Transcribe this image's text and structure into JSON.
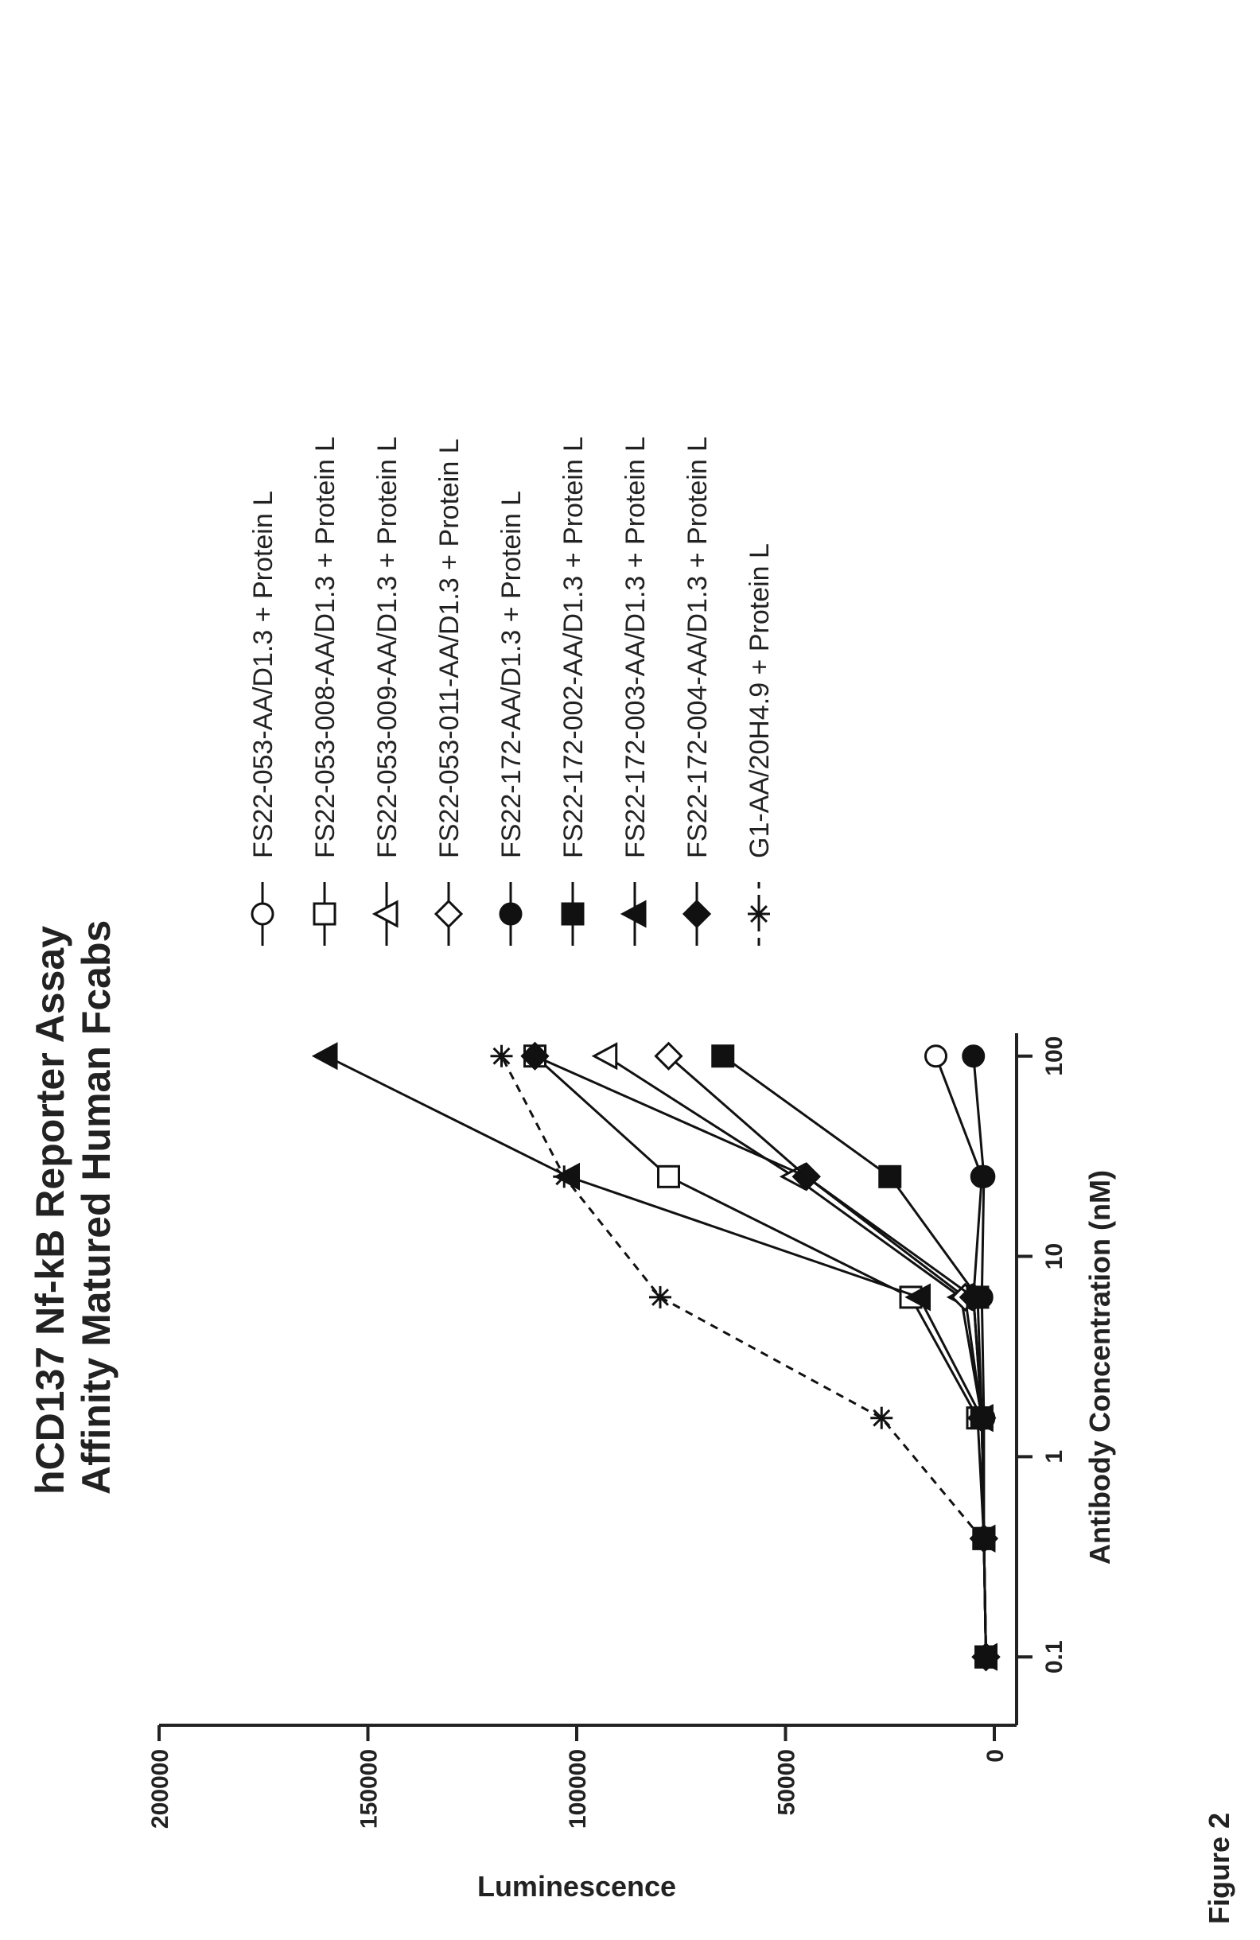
{
  "figure_label": "Figure 2",
  "chart_data": {
    "type": "scatter",
    "title": "hCD137 Nf-kB Reporter Assay",
    "subtitle": "Affinity Matured Human Fcabs",
    "xlabel": "Antibody Concentration (nM)",
    "ylabel": "Luminescence",
    "x_scale": "log",
    "xlim": [
      0.06,
      130
    ],
    "ylim": [
      0,
      200000
    ],
    "x_ticks": [
      0.1,
      1,
      10,
      100
    ],
    "x_tick_labels": [
      "0.1",
      "1",
      "10",
      "100"
    ],
    "y_ticks": [
      0,
      50000,
      100000,
      150000,
      200000
    ],
    "y_tick_labels": [
      "0",
      "50000",
      "100000",
      "150000",
      "200000"
    ],
    "legend_position": "right",
    "series": [
      {
        "name": "FS22-053-AA/D1.3 + Protein  L",
        "marker": "circle-open",
        "line": "solid",
        "x": [
          0.1,
          0.39,
          1.56,
          6.25,
          25,
          100
        ],
        "y": [
          2000,
          2500,
          3000,
          5000,
          3000,
          14000
        ]
      },
      {
        "name": "FS22-053-008-AA/D1.3 + Protein L",
        "marker": "square-open",
        "line": "solid",
        "x": [
          0.1,
          0.39,
          1.56,
          6.25,
          25,
          100
        ],
        "y": [
          2000,
          2500,
          4000,
          20000,
          78000,
          110000
        ]
      },
      {
        "name": "FS22-053-009-AA/D1.3 + Protein L",
        "marker": "triangle-open",
        "line": "solid",
        "x": [
          0.1,
          0.39,
          1.56,
          6.25,
          25,
          100
        ],
        "y": [
          2000,
          2500,
          3000,
          8000,
          48000,
          93000
        ]
      },
      {
        "name": "FS22-053-011-AA/D1.3 + Protein L",
        "marker": "diamond-open",
        "line": "solid",
        "x": [
          0.1,
          0.39,
          1.56,
          6.25,
          25,
          100
        ],
        "y": [
          2000,
          2500,
          3000,
          7000,
          45000,
          78000
        ]
      },
      {
        "name": "FS22-172-AA/D1.3 + Protein  L",
        "marker": "circle-filled",
        "line": "solid",
        "x": [
          0.1,
          0.39,
          1.56,
          6.25,
          25,
          100
        ],
        "y": [
          2000,
          2500,
          2500,
          3000,
          2500,
          5000
        ]
      },
      {
        "name": "FS22-172-002-AA/D1.3 + Protein L",
        "marker": "square-filled",
        "line": "solid",
        "x": [
          0.1,
          0.39,
          1.56,
          6.25,
          25,
          100
        ],
        "y": [
          2000,
          2500,
          3000,
          4000,
          25000,
          65000
        ]
      },
      {
        "name": "FS22-172-003-AA/D1.3 + Protein L",
        "marker": "triangle-filled",
        "line": "solid",
        "x": [
          0.1,
          0.39,
          1.56,
          6.25,
          25,
          100
        ],
        "y": [
          2000,
          2500,
          3000,
          18000,
          102000,
          160000
        ]
      },
      {
        "name": "FS22-172-004-AA/D1.3 + Protein L",
        "marker": "diamond-filled",
        "line": "solid",
        "x": [
          0.1,
          0.39,
          1.56,
          6.25,
          25,
          100
        ],
        "y": [
          2000,
          2500,
          3000,
          5000,
          45000,
          110000
        ]
      },
      {
        "name": "G1-AA/20H4.9 + Protein L",
        "marker": "asterisk",
        "line": "dashed",
        "x": [
          0.39,
          1.56,
          6.25,
          25,
          100
        ],
        "y": [
          3000,
          27000,
          80000,
          103000,
          118000
        ]
      }
    ]
  }
}
